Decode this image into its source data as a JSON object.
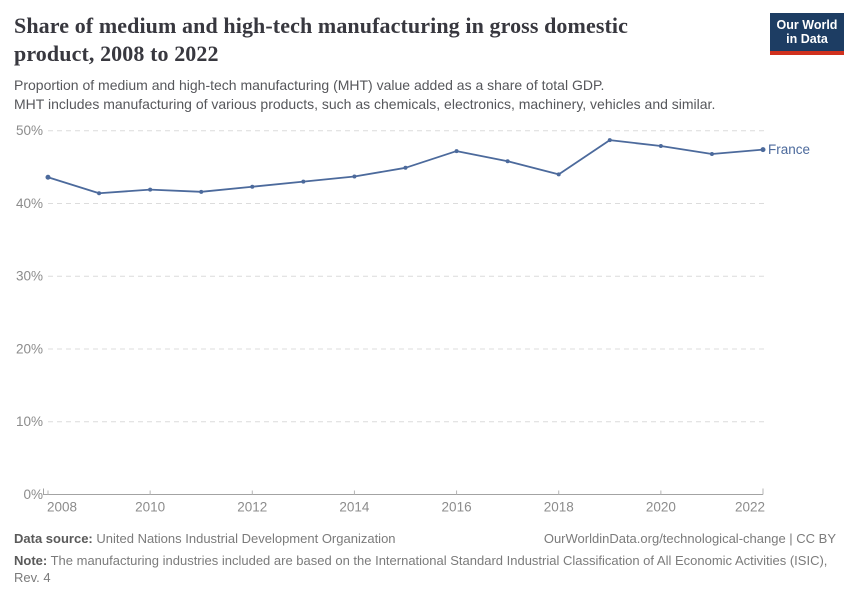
{
  "header": {
    "title_line1": "Share of medium and high-tech manufacturing in gross domestic",
    "title_line2": "product, 2008 to 2022",
    "subtitle_line1": "Proportion of medium and high-tech manufacturing (MHT) value added as a share of total GDP.",
    "subtitle_line2": "MHT includes manufacturing of various products, such as chemicals, electronics, machinery, vehicles and similar.",
    "logo": {
      "line1": "Our World",
      "line2": "in Data",
      "bg_color": "#1d3d63",
      "bar_color": "#d0311e"
    }
  },
  "chart_data": {
    "type": "line",
    "title": "Share of medium and high-tech manufacturing in gross domestic product, 2008 to 2022",
    "xlabel": "",
    "ylabel": "",
    "xlim": [
      2008,
      2022
    ],
    "ylim": [
      0,
      50
    ],
    "x_ticks": [
      2008,
      2010,
      2012,
      2014,
      2016,
      2018,
      2020,
      2022
    ],
    "y_ticks": [
      0,
      10,
      20,
      30,
      40,
      50
    ],
    "y_tick_suffix": "%",
    "grid": "horizontal-dashed",
    "legend_position": "end-of-line-label",
    "series": [
      {
        "name": "France",
        "color": "#4C6A9C",
        "x": [
          2008,
          2009,
          2010,
          2011,
          2012,
          2013,
          2014,
          2015,
          2016,
          2017,
          2018,
          2019,
          2020,
          2021,
          2022
        ],
        "values": [
          43.6,
          41.4,
          41.9,
          41.6,
          42.3,
          43.0,
          43.7,
          44.9,
          47.2,
          45.8,
          44.0,
          48.7,
          47.9,
          46.8,
          47.4
        ]
      }
    ]
  },
  "colors": {
    "grid": "#dcdcdc",
    "axis": "#a3a3a3",
    "tick": "#b5b5b5",
    "axis_text": "#8c8c8c"
  },
  "footer": {
    "source_label": "Data source:",
    "source_text": "United Nations Industrial Development Organization",
    "link_text": "OurWorldinData.org/technological-change | CC BY",
    "note_label": "Note:",
    "note_text": "The manufacturing industries included are based on the International Standard Industrial Classification of All Economic Activities (ISIC), Rev. 4"
  }
}
